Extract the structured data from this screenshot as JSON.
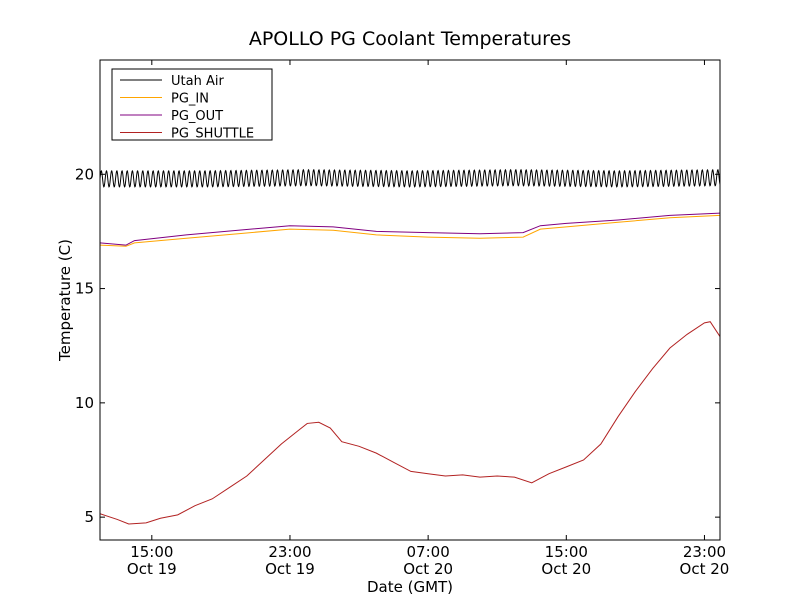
{
  "chart_data": {
    "type": "line",
    "title": "APOLLO PG Coolant Temperatures",
    "xlabel": "Date (GMT)",
    "ylabel": "Temperature (C)",
    "x_unit": "hours",
    "xlim": [
      "Oct 19 12:00",
      "Oct 20 23:54"
    ],
    "ylim": [
      4,
      25
    ],
    "yticks": [
      5,
      10,
      15,
      20
    ],
    "xticks": [
      {
        "time": "Oct 19 15:00",
        "line1": "15:00",
        "line2": "Oct 19"
      },
      {
        "time": "Oct 19 23:00",
        "line1": "23:00",
        "line2": "Oct 19"
      },
      {
        "time": "Oct 20 07:00",
        "line1": "07:00",
        "line2": "Oct 20"
      },
      {
        "time": "Oct 20 15:00",
        "line1": "15:00",
        "line2": "Oct 20"
      },
      {
        "time": "Oct 20 23:00",
        "line1": "23:00",
        "line2": "Oct 20"
      }
    ],
    "legend": {
      "position": "top-left"
    },
    "grid": false,
    "series": [
      {
        "name": "Utah Air",
        "color": "#000000",
        "oscillation": {
          "period_hours": 0.3,
          "amplitude": 0.35
        },
        "points": [
          [
            "Oct 19 12:00",
            19.8
          ],
          [
            "Oct 19 18:00",
            19.8
          ],
          [
            "Oct 20 00:00",
            19.85
          ],
          [
            "Oct 20 06:00",
            19.8
          ],
          [
            "Oct 20 12:00",
            19.85
          ],
          [
            "Oct 20 18:00",
            19.8
          ],
          [
            "Oct 20 23:54",
            19.85
          ]
        ]
      },
      {
        "name": "PG_IN",
        "color": "#ffa500",
        "points": [
          [
            "Oct 19 12:00",
            16.9
          ],
          [
            "Oct 19 13:30",
            16.85
          ],
          [
            "Oct 19 14:00",
            17.0
          ],
          [
            "Oct 19 17:00",
            17.2
          ],
          [
            "Oct 19 20:00",
            17.4
          ],
          [
            "Oct 19 23:00",
            17.6
          ],
          [
            "Oct 20 01:30",
            17.55
          ],
          [
            "Oct 20 04:00",
            17.35
          ],
          [
            "Oct 20 07:00",
            17.25
          ],
          [
            "Oct 20 10:00",
            17.2
          ],
          [
            "Oct 20 12:30",
            17.25
          ],
          [
            "Oct 20 13:30",
            17.6
          ],
          [
            "Oct 20 15:00",
            17.7
          ],
          [
            "Oct 20 18:00",
            17.9
          ],
          [
            "Oct 20 21:00",
            18.1
          ],
          [
            "Oct 20 23:54",
            18.2
          ]
        ]
      },
      {
        "name": "PG_OUT",
        "color": "#800080",
        "points": [
          [
            "Oct 19 12:00",
            17.0
          ],
          [
            "Oct 19 13:30",
            16.9
          ],
          [
            "Oct 19 14:00",
            17.1
          ],
          [
            "Oct 19 17:00",
            17.35
          ],
          [
            "Oct 19 20:00",
            17.55
          ],
          [
            "Oct 19 23:00",
            17.75
          ],
          [
            "Oct 20 01:30",
            17.7
          ],
          [
            "Oct 20 04:00",
            17.5
          ],
          [
            "Oct 20 07:00",
            17.45
          ],
          [
            "Oct 20 10:00",
            17.4
          ],
          [
            "Oct 20 12:30",
            17.45
          ],
          [
            "Oct 20 13:30",
            17.75
          ],
          [
            "Oct 20 15:00",
            17.85
          ],
          [
            "Oct 20 18:00",
            18.0
          ],
          [
            "Oct 20 21:00",
            18.2
          ],
          [
            "Oct 20 23:54",
            18.3
          ]
        ]
      },
      {
        "name": "PG_SHUTTLE",
        "color": "#b22222",
        "points": [
          [
            "Oct 19 12:00",
            5.15
          ],
          [
            "Oct 19 13:00",
            4.9
          ],
          [
            "Oct 19 13:40",
            4.7
          ],
          [
            "Oct 19 14:40",
            4.75
          ],
          [
            "Oct 19 15:30",
            4.95
          ],
          [
            "Oct 19 16:30",
            5.1
          ],
          [
            "Oct 19 17:30",
            5.5
          ],
          [
            "Oct 19 18:30",
            5.8
          ],
          [
            "Oct 19 19:30",
            6.3
          ],
          [
            "Oct 19 20:30",
            6.8
          ],
          [
            "Oct 19 21:30",
            7.5
          ],
          [
            "Oct 19 22:30",
            8.2
          ],
          [
            "Oct 19 23:30",
            8.8
          ],
          [
            "Oct 20 00:00",
            9.1
          ],
          [
            "Oct 20 00:40",
            9.15
          ],
          [
            "Oct 20 01:20",
            8.9
          ],
          [
            "Oct 20 02:00",
            8.3
          ],
          [
            "Oct 20 03:00",
            8.1
          ],
          [
            "Oct 20 04:00",
            7.8
          ],
          [
            "Oct 20 05:00",
            7.4
          ],
          [
            "Oct 20 06:00",
            7.0
          ],
          [
            "Oct 20 07:00",
            6.9
          ],
          [
            "Oct 20 08:00",
            6.8
          ],
          [
            "Oct 20 09:00",
            6.85
          ],
          [
            "Oct 20 10:00",
            6.75
          ],
          [
            "Oct 20 11:00",
            6.8
          ],
          [
            "Oct 20 12:00",
            6.75
          ],
          [
            "Oct 20 13:00",
            6.5
          ],
          [
            "Oct 20 14:00",
            6.9
          ],
          [
            "Oct 20 15:00",
            7.2
          ],
          [
            "Oct 20 16:00",
            7.5
          ],
          [
            "Oct 20 17:00",
            8.2
          ],
          [
            "Oct 20 18:00",
            9.4
          ],
          [
            "Oct 20 19:00",
            10.5
          ],
          [
            "Oct 20 20:00",
            11.5
          ],
          [
            "Oct 20 21:00",
            12.4
          ],
          [
            "Oct 20 22:00",
            13.0
          ],
          [
            "Oct 20 23:00",
            13.5
          ],
          [
            "Oct 20 23:20",
            13.55
          ],
          [
            "Oct 20 23:54",
            12.9
          ]
        ]
      }
    ]
  }
}
